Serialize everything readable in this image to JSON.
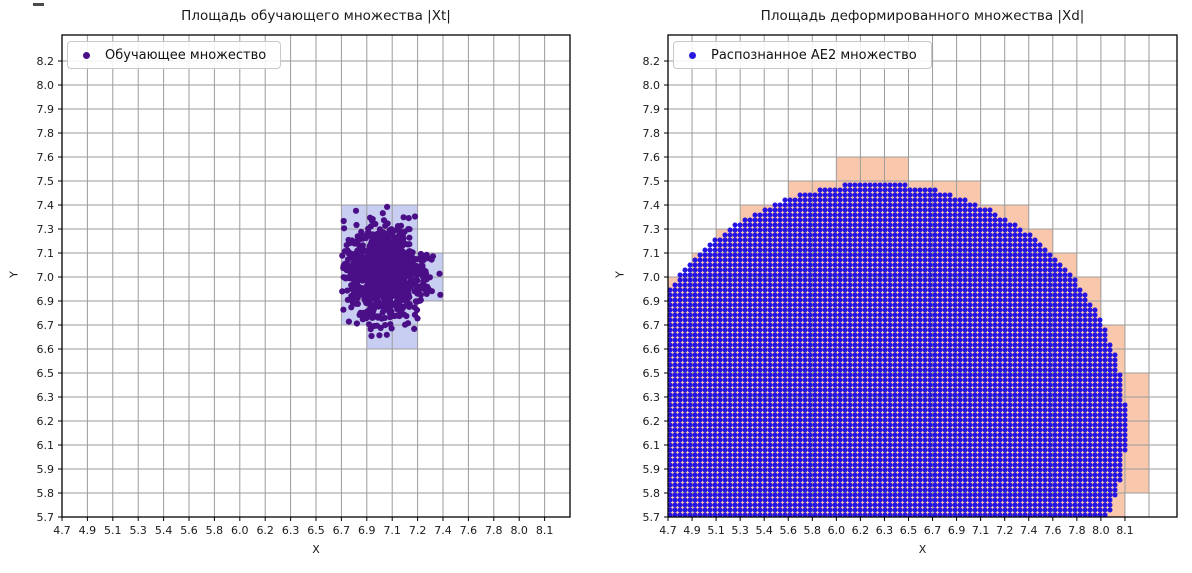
{
  "figure": {
    "background": "#ffffff",
    "grid_color": "#9b9b9b",
    "spine_color": "#000000",
    "artifact_dash": "window-edge-mark"
  },
  "chart_data": [
    {
      "type": "scatter",
      "title": "Площадь обучающего множества |Xt|",
      "xlabel": "X",
      "ylabel": "Y",
      "x_tick_labels": [
        "4.7",
        "4.9",
        "5.1",
        "5.3",
        "5.4",
        "5.6",
        "5.8",
        "6.0",
        "6.2",
        "6.3",
        "6.5",
        "6.7",
        "6.9",
        "7.1",
        "7.2",
        "7.4",
        "7.6",
        "7.8",
        "8.0",
        "8.1"
      ],
      "y_tick_labels": [
        "8.2",
        "8.0",
        "7.9",
        "7.8",
        "7.6",
        "7.5",
        "7.4",
        "7.3",
        "7.1",
        "7.0",
        "6.9",
        "6.7",
        "6.6",
        "6.5",
        "6.3",
        "6.2",
        "6.1",
        "5.9",
        "5.8",
        "5.7"
      ],
      "grid": true,
      "legend": {
        "label": "Обучающее множество",
        "position": "upper-left"
      },
      "point_color": "#4a0e87",
      "cell_color": "#c7cef2",
      "cluster": {
        "center_x_value": 7.0,
        "center_y_value": 7.0,
        "center_col": 12.6,
        "center_row": 8.8,
        "std_cols": 0.82,
        "std_rows": 1.0,
        "n_points": 950
      },
      "highlighted_cells": [
        [
          11,
          6
        ],
        [
          12,
          6
        ],
        [
          13,
          6
        ],
        [
          11,
          7
        ],
        [
          12,
          7
        ],
        [
          13,
          7
        ],
        [
          11,
          8
        ],
        [
          12,
          8
        ],
        [
          13,
          8
        ],
        [
          14,
          8
        ],
        [
          11,
          9
        ],
        [
          12,
          9
        ],
        [
          13,
          9
        ],
        [
          14,
          9
        ],
        [
          11,
          10
        ],
        [
          12,
          10
        ],
        [
          13,
          10
        ],
        [
          12,
          11
        ],
        [
          13,
          11
        ]
      ]
    },
    {
      "type": "scatter",
      "title": "Площадь деформированного множества |Xd|",
      "xlabel": "X",
      "ylabel": "Y",
      "x_tick_labels": [
        "4.7",
        "4.9",
        "5.1",
        "5.3",
        "5.4",
        "5.6",
        "5.8",
        "6.0",
        "6.2",
        "6.3",
        "6.5",
        "6.7",
        "6.9",
        "7.1",
        "7.2",
        "7.4",
        "7.6",
        "7.8",
        "8.0",
        "8.1"
      ],
      "y_tick_labels": [
        "8.2",
        "8.0",
        "7.9",
        "7.8",
        "7.6",
        "7.5",
        "7.4",
        "7.3",
        "7.1",
        "7.0",
        "6.9",
        "6.7",
        "6.6",
        "6.5",
        "6.3",
        "6.2",
        "6.1",
        "5.9",
        "5.8",
        "5.7"
      ],
      "grid": true,
      "legend": {
        "label": "Распознанное AE2 множество",
        "position": "upper-left"
      },
      "point_color": "#2615e0",
      "cell_color": "#f9c7ac",
      "dome": {
        "center_x_value": 6.25,
        "center_y_value": 6.15,
        "center_col": 8.63,
        "center_row": 15.25,
        "radius_cols": 10.42,
        "radius_rows": 10.17,
        "dot_grid_spacing_px": 5,
        "n_points_approx": 5300,
        "clipped_left_value": 4.7,
        "clipped_bottom_value": 5.7,
        "top_value": 7.5,
        "left_top_value": 7.0,
        "right_bottom_value": 8.05
      },
      "highlighted_rows": [
        {
          "row": 4,
          "from": 7,
          "to": 9
        },
        {
          "row": 5,
          "from": 5,
          "to": 12
        },
        {
          "row": 6,
          "from": 3,
          "to": 14
        },
        {
          "row": 7,
          "from": 2,
          "to": 15
        },
        {
          "row": 8,
          "from": 1,
          "to": 16
        },
        {
          "row": 9,
          "from": 0,
          "to": 17
        },
        {
          "row": 10,
          "from": 0,
          "to": 17
        },
        {
          "row": 11,
          "from": 0,
          "to": 18
        },
        {
          "row": 12,
          "from": 0,
          "to": 18
        },
        {
          "row": 13,
          "from": 0,
          "to": 19
        },
        {
          "row": 14,
          "from": 0,
          "to": 19
        },
        {
          "row": 15,
          "from": 0,
          "to": 19
        },
        {
          "row": 16,
          "from": 0,
          "to": 19
        },
        {
          "row": 17,
          "from": 0,
          "to": 19
        },
        {
          "row": 18,
          "from": 0,
          "to": 18
        }
      ]
    }
  ]
}
